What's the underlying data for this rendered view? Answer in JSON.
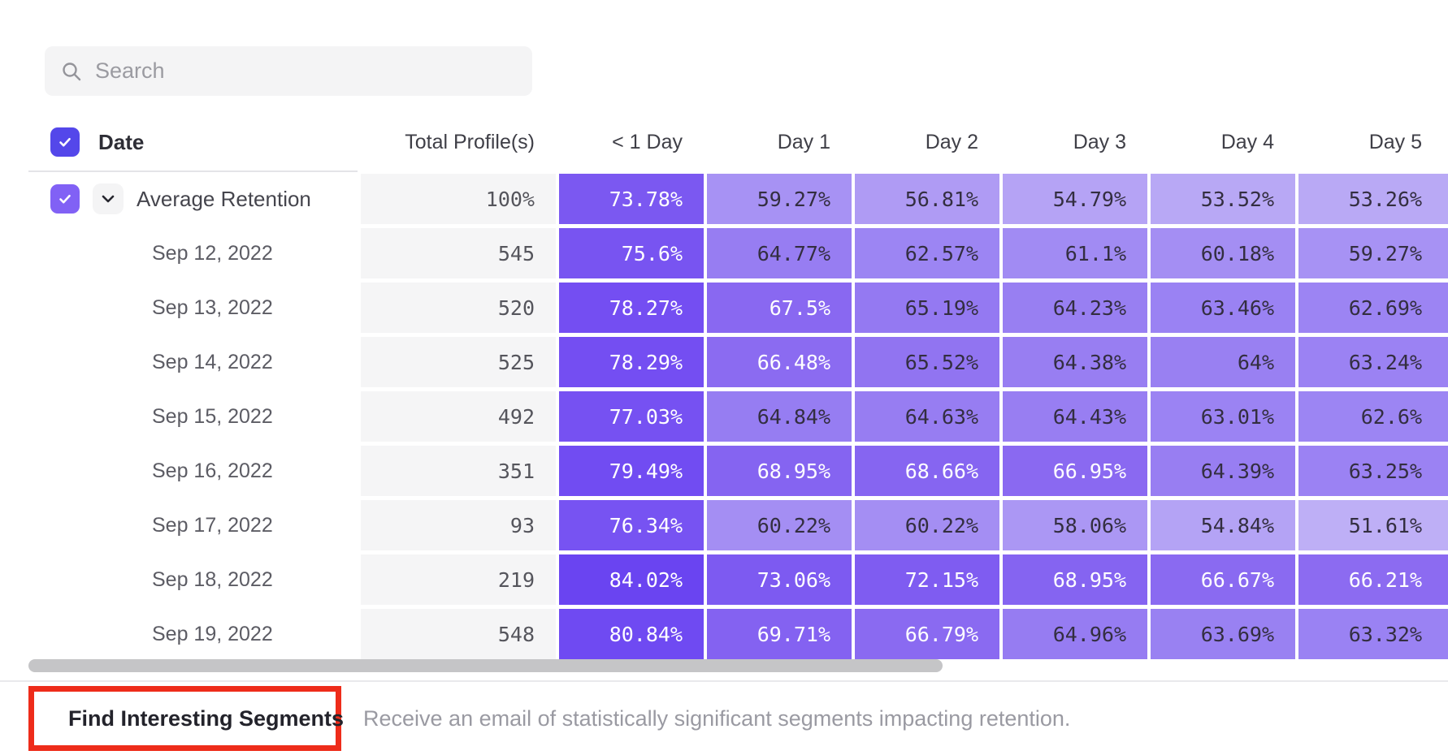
{
  "search": {
    "placeholder": "Search"
  },
  "table": {
    "columns": [
      "Date",
      "Total Profile(s)",
      "< 1 Day",
      "Day 1",
      "Day 2",
      "Day 3",
      "Day 4",
      "Day 5"
    ],
    "header_checkbox_checked": true,
    "rows": [
      {
        "label": "Average Retention",
        "is_average": true,
        "checkbox_checked": true,
        "total": "100%",
        "values": [
          "73.78%",
          "59.27%",
          "56.81%",
          "54.79%",
          "53.52%",
          "53.26%"
        ]
      },
      {
        "label": "Sep 12, 2022",
        "total": "545",
        "values": [
          "75.6%",
          "64.77%",
          "62.57%",
          "61.1%",
          "60.18%",
          "59.27%"
        ]
      },
      {
        "label": "Sep 13, 2022",
        "total": "520",
        "values": [
          "78.27%",
          "67.5%",
          "65.19%",
          "64.23%",
          "63.46%",
          "62.69%"
        ]
      },
      {
        "label": "Sep 14, 2022",
        "total": "525",
        "values": [
          "78.29%",
          "66.48%",
          "65.52%",
          "64.38%",
          "64%",
          "63.24%"
        ]
      },
      {
        "label": "Sep 15, 2022",
        "total": "492",
        "values": [
          "77.03%",
          "64.84%",
          "64.63%",
          "64.43%",
          "63.01%",
          "62.6%"
        ]
      },
      {
        "label": "Sep 16, 2022",
        "total": "351",
        "values": [
          "79.49%",
          "68.95%",
          "68.66%",
          "66.95%",
          "64.39%",
          "63.25%"
        ]
      },
      {
        "label": "Sep 17, 2022",
        "total": "93",
        "values": [
          "76.34%",
          "60.22%",
          "60.22%",
          "58.06%",
          "54.84%",
          "51.61%"
        ]
      },
      {
        "label": "Sep 18, 2022",
        "total": "219",
        "values": [
          "84.02%",
          "73.06%",
          "72.15%",
          "68.95%",
          "66.67%",
          "66.21%"
        ]
      },
      {
        "label": "Sep 19, 2022",
        "total": "548",
        "values": [
          "80.84%",
          "69.71%",
          "66.79%",
          "64.96%",
          "63.69%",
          "63.32%"
        ]
      }
    ]
  },
  "footer": {
    "button_label": "Find Interesting Segments",
    "description": "Receive an email of statistically significant segments impacting retention."
  },
  "icons": {
    "search": "search-icon",
    "chevron": "chevron-down-icon",
    "checkmark": "checkmark-icon",
    "segments": "segments-quadrant-icon"
  },
  "colors": {
    "header_checkbox": "#5447ea",
    "row_checkbox": "#8161f5",
    "cell_text_dark": "#332e40",
    "cell_text_light": "#ffffff",
    "white_text_threshold": 66,
    "cell_scale_anchors": [
      [
        51,
        192,
        177,
        246
      ],
      [
        58,
        171,
        151,
        244
      ],
      [
        62,
        158,
        135,
        243
      ],
      [
        65,
        150,
        124,
        242
      ],
      [
        66,
        140,
        108,
        241
      ],
      [
        70,
        131,
        97,
        241
      ],
      [
        74,
        123,
        88,
        241
      ],
      [
        78,
        116,
        79,
        242
      ],
      [
        85,
        104,
        66,
        241
      ]
    ],
    "total_col_bg": "#f5f5f6",
    "annotation_red": "#ee2c1a",
    "scrollbar_thumb": "#c5c5c7"
  }
}
